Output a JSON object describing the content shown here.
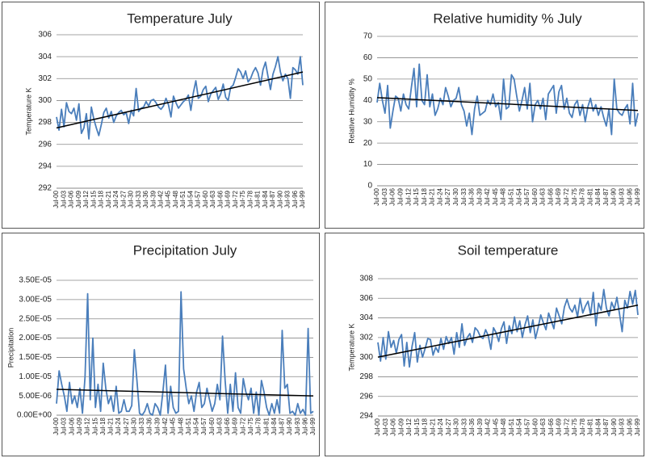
{
  "chart_data": [
    {
      "type": "line",
      "title": "Temperature July",
      "y_label": "Temperature K",
      "categories": [
        "Jul-00",
        null,
        null,
        "Jul-03",
        null,
        null,
        "Jul-06",
        null,
        null,
        "Jul-09",
        null,
        null,
        "Jul-12",
        null,
        null,
        "Jul-15",
        null,
        null,
        "Jul-18",
        null,
        null,
        "Jul-21",
        null,
        null,
        "Jul-24",
        null,
        null,
        "Jul-27",
        null,
        null,
        "Jul-30",
        null,
        null,
        "Jul-33",
        null,
        null,
        "Jul-36",
        null,
        null,
        "Jul-39",
        null,
        null,
        "Jul-42",
        null,
        null,
        "Jul-45",
        null,
        null,
        "Jul-48",
        null,
        null,
        "Jul-51",
        null,
        null,
        "Jul-54",
        null,
        null,
        "Jul-57",
        null,
        null,
        "Jul-60",
        null,
        null,
        "Jul-63",
        null,
        null,
        "Jul-66",
        null,
        null,
        "Jul-69",
        null,
        null,
        "Jul-72",
        null,
        null,
        "Jul-75",
        null,
        null,
        "Jul-78",
        null,
        null,
        "Jul-81",
        null,
        null,
        "Jul-84",
        null,
        null,
        "Jul-87",
        null,
        null,
        "Jul-90",
        null,
        null,
        "Jul-93",
        null,
        null,
        "Jul-96",
        null,
        null,
        "Jul-99"
      ],
      "values": [
        298.5,
        297.3,
        299.2,
        297.6,
        299.8,
        299.0,
        298.8,
        299.3,
        298.2,
        299.7,
        297.0,
        297.5,
        298.8,
        296.5,
        299.4,
        298.3,
        297.5,
        296.8,
        297.8,
        298.9,
        299.3,
        298.4,
        299.0,
        298.0,
        298.6,
        298.9,
        299.1,
        298.7,
        298.9,
        297.9,
        299.1,
        298.6,
        301.1,
        299.0,
        299.3,
        299.4,
        299.9,
        299.5,
        300.0,
        300.1,
        299.8,
        299.4,
        299.2,
        299.5,
        300.2,
        299.6,
        298.5,
        300.4,
        299.8,
        299.3,
        299.6,
        299.9,
        300.1,
        300.5,
        299.1,
        300.7,
        301.8,
        300.2,
        300.4,
        301.0,
        301.3,
        299.9,
        300.6,
        300.9,
        301.2,
        300.1,
        300.6,
        301.5,
        300.3,
        300.0,
        301.2,
        301.4,
        302.1,
        302.9,
        302.6,
        302.0,
        302.7,
        301.7,
        302.0,
        302.6,
        303.0,
        302.5,
        301.4,
        302.8,
        303.5,
        302.2,
        301.0,
        302.4,
        303.1,
        304.0,
        302.6,
        301.8,
        302.4,
        302.0,
        300.2,
        303.0,
        302.8,
        302.4,
        304.0,
        301.4
      ],
      "color": "#4a7ebb",
      "trendline": {
        "color": "#000000",
        "values": [
          297.5,
          302.6
        ]
      },
      "ylim": [
        292,
        306
      ],
      "yticks": [
        292,
        294,
        296,
        298,
        300,
        302,
        304,
        306
      ],
      "grid": true
    },
    {
      "type": "line",
      "title": "Relative humidity %  July",
      "y_label": "Relative Humidity %",
      "categories": [
        "Jul-00",
        null,
        null,
        "Jul-03",
        null,
        null,
        "Jul-06",
        null,
        null,
        "Jul-09",
        null,
        null,
        "Jul-12",
        null,
        null,
        "Jul-15",
        null,
        null,
        "Jul-18",
        null,
        null,
        "Jul-21",
        null,
        null,
        "Jul-24",
        null,
        null,
        "Jul-27",
        null,
        null,
        "Jul-30",
        null,
        null,
        "Jul-33",
        null,
        null,
        "Jul-36",
        null,
        null,
        "Jul-39",
        null,
        null,
        "Jul-42",
        null,
        null,
        "Jul-45",
        null,
        null,
        "Jul-48",
        null,
        null,
        "Jul-51",
        null,
        null,
        "Jul-54",
        null,
        null,
        "Jul-57",
        null,
        null,
        "Jul-60",
        null,
        null,
        "Jul-63",
        null,
        null,
        "Jul-66",
        null,
        null,
        "Jul-69",
        null,
        null,
        "Jul-72",
        null,
        null,
        "Jul-75",
        null,
        null,
        "Jul-78",
        null,
        null,
        "Jul-81",
        null,
        null,
        "Jul-84",
        null,
        null,
        "Jul-87",
        null,
        null,
        "Jul-90",
        null,
        null,
        "Jul-93",
        null,
        null,
        "Jul-96",
        null,
        null,
        "Jul-99"
      ],
      "values": [
        39,
        48,
        40,
        34,
        47,
        27,
        35,
        42,
        41,
        35,
        43,
        38,
        36,
        46,
        55,
        37,
        57,
        40,
        38,
        52,
        37,
        43,
        33,
        36,
        41,
        38,
        46,
        42,
        37,
        40,
        41,
        46,
        38,
        35,
        28,
        34,
        24,
        36,
        42,
        33,
        34,
        35,
        40,
        38,
        43,
        37,
        39,
        31,
        50,
        36,
        37,
        52,
        50,
        42,
        35,
        40,
        46,
        36,
        48,
        30,
        38,
        40,
        36,
        41,
        31,
        43,
        45,
        47,
        34,
        44,
        47,
        36,
        41,
        34,
        32,
        38,
        40,
        33,
        38,
        30,
        37,
        41,
        35,
        38,
        33,
        37,
        32,
        28,
        36,
        24,
        50,
        36,
        34,
        33,
        36,
        38,
        29,
        48,
        28,
        34
      ],
      "color": "#4a7ebb",
      "trendline": {
        "color": "#000000",
        "values": [
          41.3,
          35.3
        ]
      },
      "ylim": [
        0,
        70
      ],
      "yticks": [
        0,
        10,
        20,
        30,
        40,
        50,
        60,
        70
      ],
      "grid": true
    },
    {
      "type": "line",
      "title": "Precipitation  July",
      "y_label": "Precipitation",
      "categories": [
        "Jul-00",
        null,
        null,
        "Jul-03",
        null,
        null,
        "Jul-06",
        null,
        null,
        "Jul-09",
        null,
        null,
        "Jul-12",
        null,
        null,
        "Jul-15",
        null,
        null,
        "Jul-18",
        null,
        null,
        "Jul-21",
        null,
        null,
        "Jul-24",
        null,
        null,
        "Jul-27",
        null,
        null,
        "Jul-30",
        null,
        null,
        "Jul-33",
        null,
        null,
        "Jul-36",
        null,
        null,
        "Jul-39",
        null,
        null,
        "Jul-42",
        null,
        null,
        "Jul-45",
        null,
        null,
        "Jul-48",
        null,
        null,
        "Jul-51",
        null,
        null,
        "Jul-54",
        null,
        null,
        "Jul-57",
        null,
        null,
        "Jul-60",
        null,
        null,
        "Jul-63",
        null,
        null,
        "Jul-66",
        null,
        null,
        "Jul-69",
        null,
        null,
        "Jul-72",
        null,
        null,
        "Jul-75",
        null,
        null,
        "Jul-78",
        null,
        null,
        "Jul-81",
        null,
        null,
        "Jul-84",
        null,
        null,
        "Jul-87",
        null,
        null,
        "Jul-90",
        null,
        null,
        "Jul-93",
        null,
        null,
        "Jul-96",
        null,
        null,
        "Jul-99"
      ],
      "values": [
        3e-06,
        1.15e-05,
        8e-06,
        5e-06,
        1e-06,
        8.5e-06,
        3e-06,
        5e-06,
        2e-06,
        7e-06,
        5e-07,
        1e-05,
        3.15e-05,
        4e-06,
        2e-05,
        2e-06,
        8e-06,
        1e-06,
        1.35e-05,
        7e-06,
        3e-06,
        5e-06,
        1e-06,
        7.5e-06,
        5e-07,
        1e-06,
        4e-06,
        1e-06,
        1e-06,
        2.5e-06,
        1.7e-05,
        9e-06,
        5e-07,
        0,
        1e-06,
        3e-06,
        5e-07,
        0,
        3e-06,
        2e-06,
        0,
        6e-06,
        1.3e-05,
        5e-07,
        7.5e-06,
        2e-06,
        5e-07,
        1e-06,
        3.2e-05,
        1.2e-05,
        7e-06,
        3e-06,
        5e-06,
        1e-06,
        6e-06,
        8.5e-06,
        2e-06,
        3e-06,
        7e-06,
        4e-06,
        1e-06,
        3e-06,
        8e-06,
        4e-06,
        2.05e-05,
        9e-06,
        5e-07,
        8e-06,
        1e-06,
        1.1e-05,
        2e-06,
        5e-07,
        9.5e-06,
        6e-06,
        4e-06,
        7e-06,
        5e-07,
        6e-06,
        0,
        9e-06,
        6e-06,
        2e-06,
        0,
        3e-06,
        5e-07,
        4e-06,
        5e-07,
        2.2e-05,
        7e-06,
        8e-06,
        5e-07,
        1e-06,
        0,
        3e-06,
        5e-07,
        1.5e-06,
        0,
        2.25e-05,
        5e-07,
        1e-06
      ],
      "color": "#4a7ebb",
      "trendline": {
        "color": "#000000",
        "values": [
          6.7e-06,
          5e-06
        ]
      },
      "ylim": [
        0,
        3.5e-05
      ],
      "yticks": [
        {
          "value": 0,
          "label": "0.00E+00"
        },
        {
          "value": 5e-06,
          "label": "5.00E-06"
        },
        {
          "value": 1e-05,
          "label": "1.00E-05"
        },
        {
          "value": 1.5e-05,
          "label": "1.50E-05"
        },
        {
          "value": 2e-05,
          "label": "2.00E-05"
        },
        {
          "value": 2.5e-05,
          "label": "2.50E-05"
        },
        {
          "value": 3e-05,
          "label": "3.00E-05"
        },
        {
          "value": 3.5e-05,
          "label": "3.50E-05"
        }
      ],
      "grid": true
    },
    {
      "type": "line",
      "title": "Soil temperature",
      "y_label": "Temperature K",
      "categories": [
        "Jul-00",
        null,
        null,
        "Jul-03",
        null,
        null,
        "Jul-06",
        null,
        null,
        "Jul-09",
        null,
        null,
        "Jul-12",
        null,
        null,
        "Jul-15",
        null,
        null,
        "Jul-18",
        null,
        null,
        "Jul-21",
        null,
        null,
        "Jul-24",
        null,
        null,
        "Jul-27",
        null,
        null,
        "Jul-30",
        null,
        null,
        "Jul-33",
        null,
        null,
        "Jul-36",
        null,
        null,
        "Jul-39",
        null,
        null,
        "Jul-42",
        null,
        null,
        "Jul-45",
        null,
        null,
        "Jul-48",
        null,
        null,
        "Jul-51",
        null,
        null,
        "Jul-54",
        null,
        null,
        "Jul-57",
        null,
        null,
        "Jul-60",
        null,
        null,
        "Jul-63",
        null,
        null,
        "Jul-66",
        null,
        null,
        "Jul-69",
        null,
        null,
        "Jul-72",
        null,
        null,
        "Jul-75",
        null,
        null,
        "Jul-78",
        null,
        null,
        "Jul-81",
        null,
        null,
        "Jul-84",
        null,
        null,
        "Jul-87",
        null,
        null,
        "Jul-90",
        null,
        null,
        "Jul-93",
        null,
        null,
        "Jul-96",
        null,
        null,
        "Jul-99"
      ],
      "values": [
        301.5,
        299.6,
        302.0,
        299.8,
        302.6,
        301.0,
        301.7,
        300.4,
        301.8,
        302.3,
        299.1,
        301.5,
        299.0,
        301.1,
        302.5,
        299.5,
        301.2,
        300.0,
        300.9,
        301.9,
        301.8,
        300.2,
        301.0,
        300.5,
        301.9,
        300.8,
        302.1,
        301.4,
        302.0,
        300.3,
        302.5,
        301.0,
        303.4,
        301.2,
        302.0,
        302.4,
        301.5,
        303.0,
        302.7,
        302.1,
        301.9,
        302.8,
        302.2,
        300.8,
        303.0,
        302.5,
        301.6,
        302.9,
        303.6,
        301.4,
        303.2,
        302.4,
        304.1,
        302.6,
        303.7,
        302.0,
        303.3,
        304.2,
        302.5,
        303.8,
        301.9,
        303.0,
        304.3,
        303.5,
        302.8,
        304.5,
        303.7,
        302.9,
        305.0,
        304.2,
        303.4,
        305.1,
        305.9,
        305.0,
        304.6,
        305.3,
        304.1,
        306.0,
        304.5,
        305.2,
        305.7,
        304.3,
        306.6,
        303.2,
        305.5,
        304.8,
        306.9,
        305.0,
        304.2,
        305.6,
        304.9,
        306.1,
        304.4,
        302.6,
        305.8,
        305.0,
        306.7,
        305.4,
        306.8,
        304.3
      ],
      "color": "#4a7ebb",
      "trendline": {
        "color": "#000000",
        "values": [
          300.0,
          305.3
        ]
      },
      "ylim": [
        294,
        308
      ],
      "yticks": [
        294,
        296,
        298,
        300,
        302,
        304,
        306,
        308
      ],
      "grid": true
    }
  ]
}
